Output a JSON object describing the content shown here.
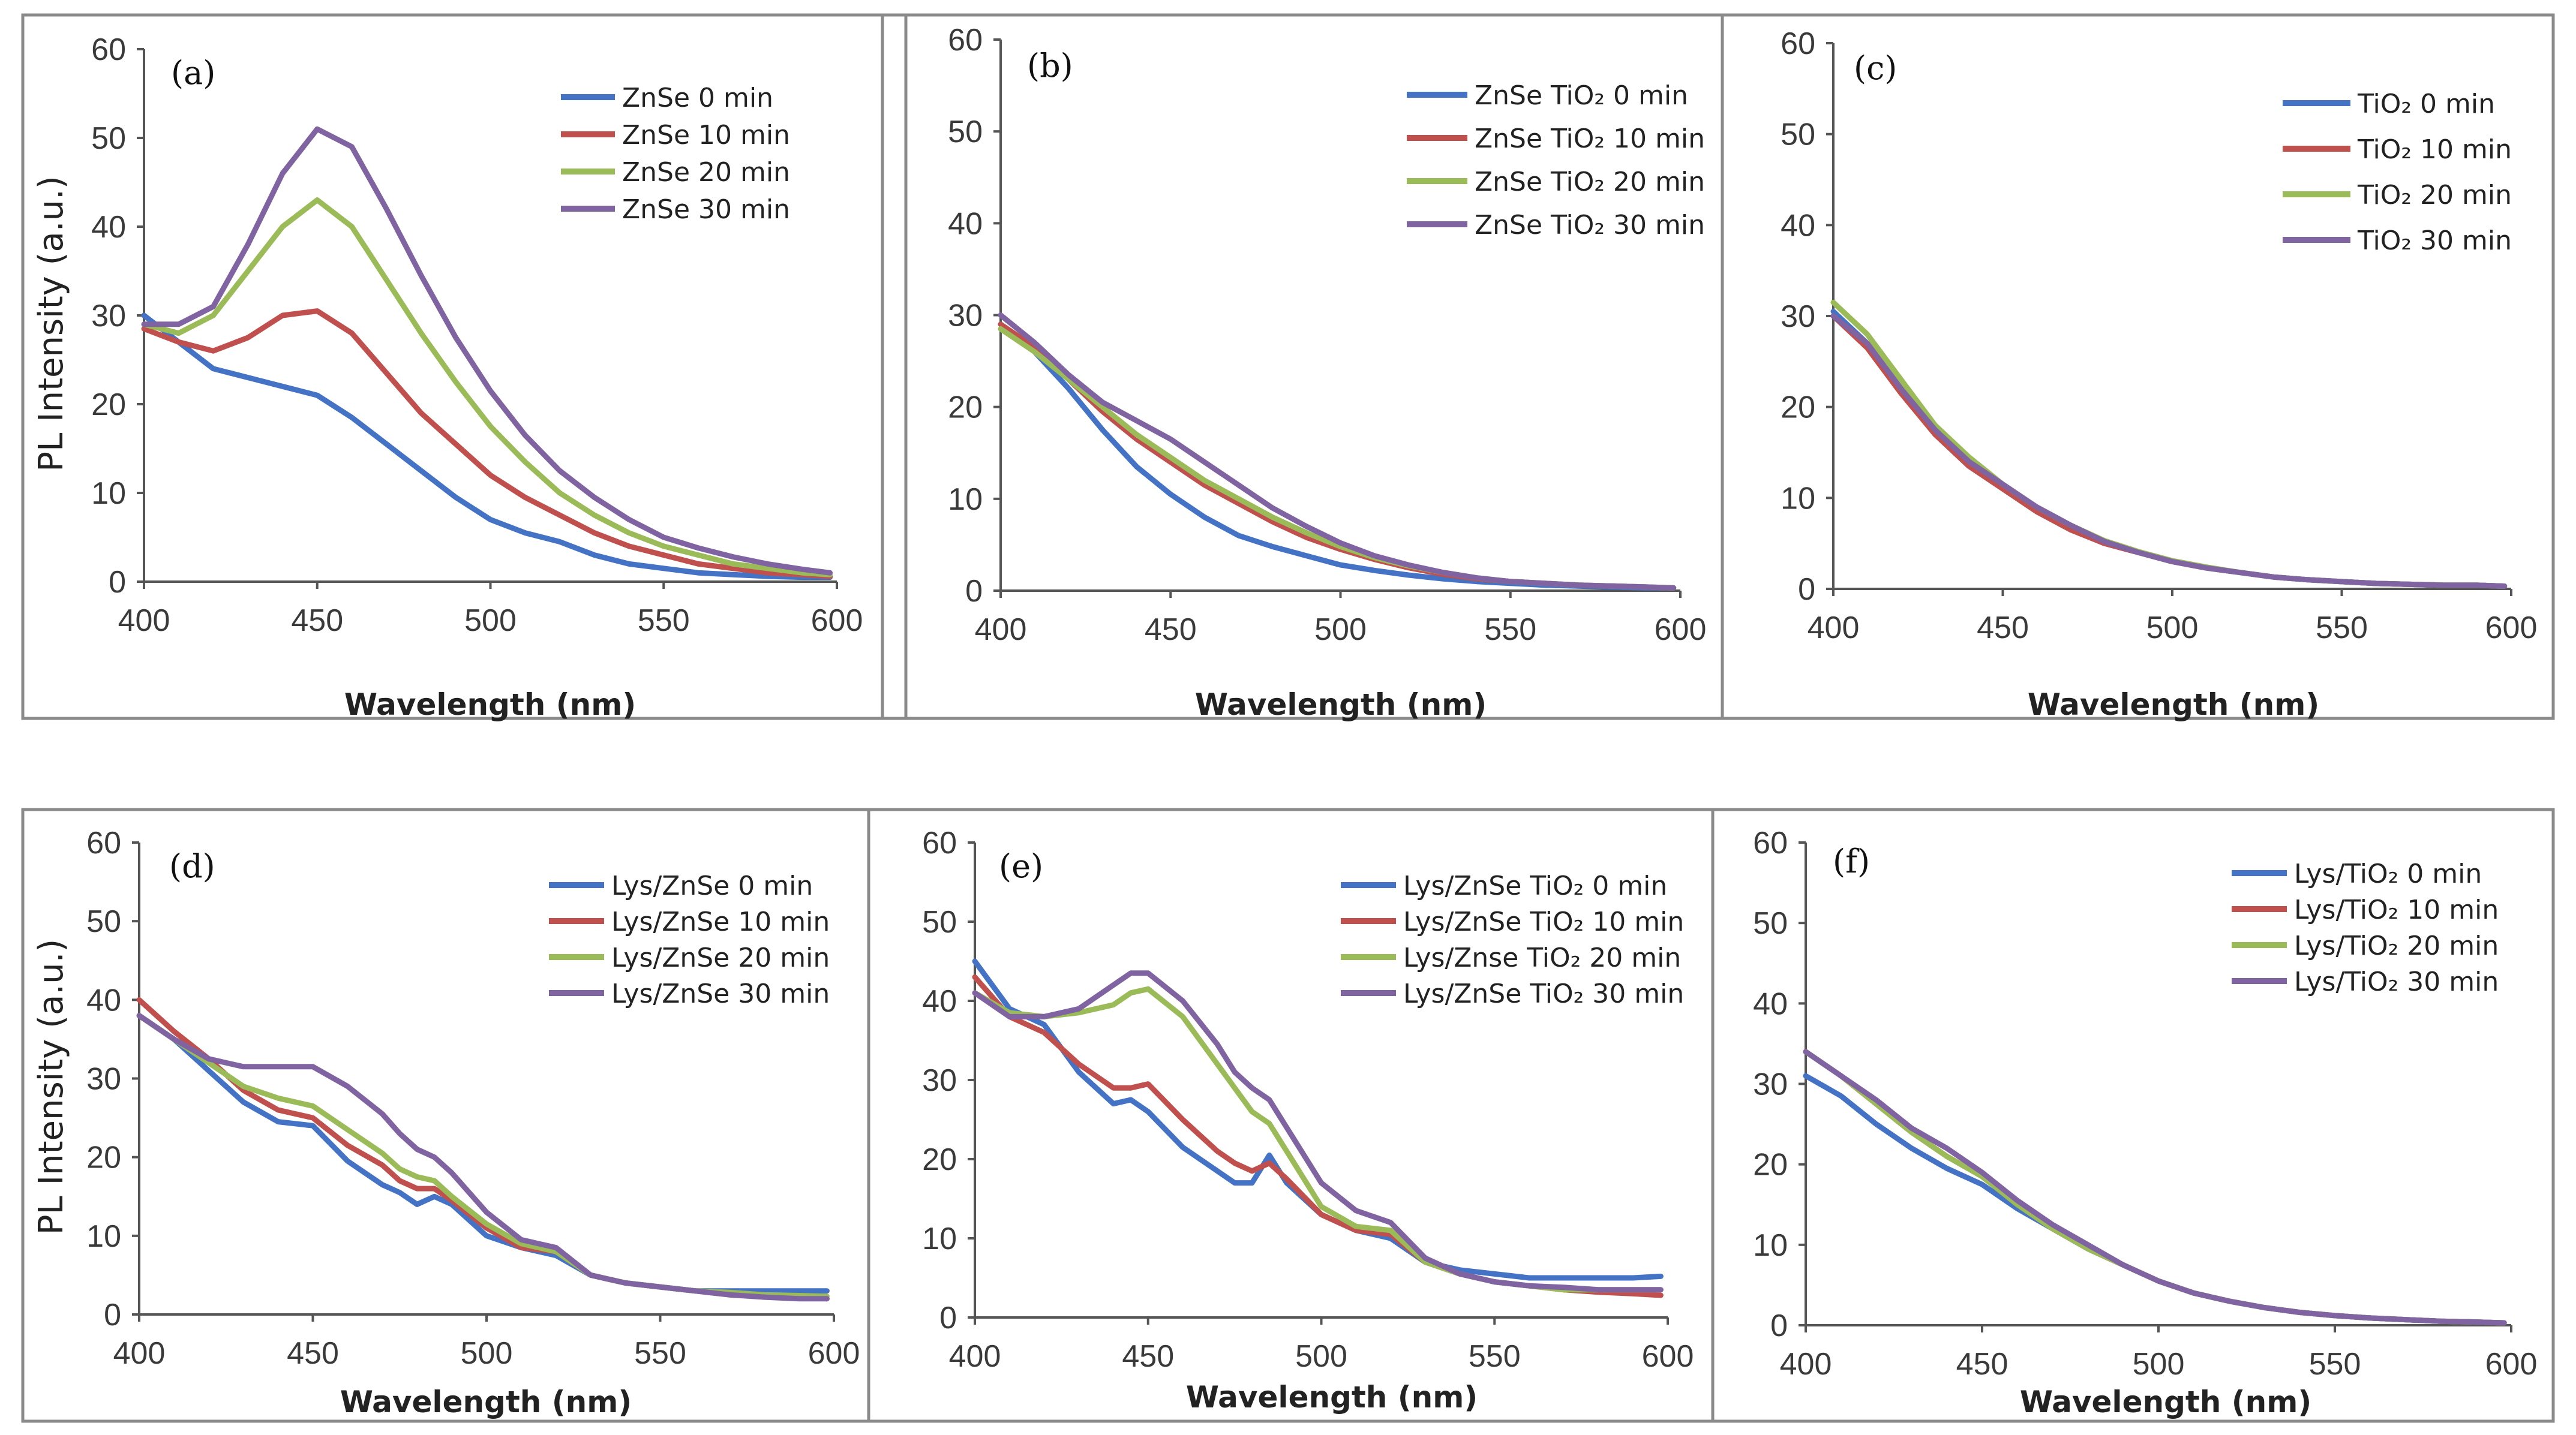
{
  "colors": {
    "s0": "#4472c4",
    "s10": "#c0504d",
    "s20": "#9bbb59",
    "s30": "#8064a2"
  },
  "chart_data": [
    {
      "type": "line",
      "panel_label": "(a)",
      "xlabel": "Wavelength (nm)",
      "ylabel": "PL Intensity (a.u.)",
      "xlim": [
        400,
        600
      ],
      "ylim": [
        0,
        60
      ],
      "xticks": [
        400,
        450,
        500,
        550,
        600
      ],
      "yticks": [
        0,
        10,
        20,
        30,
        40,
        50,
        60
      ],
      "x": [
        400,
        410,
        420,
        430,
        440,
        450,
        460,
        470,
        480,
        490,
        500,
        510,
        520,
        530,
        540,
        550,
        560,
        570,
        580,
        590,
        598
      ],
      "series": [
        {
          "name": "ZnSe  0 min",
          "color": "#4472c4",
          "values": [
            30,
            27,
            24,
            23,
            22,
            21,
            18.5,
            15.5,
            12.5,
            9.5,
            7,
            5.5,
            4.5,
            3,
            2,
            1.5,
            1,
            0.8,
            0.6,
            0.5,
            0.5
          ]
        },
        {
          "name": "ZnSe 10 min",
          "color": "#c0504d",
          "values": [
            28.5,
            27,
            26,
            27.5,
            30,
            30.5,
            28,
            23.5,
            19,
            15.5,
            12,
            9.5,
            7.5,
            5.5,
            4,
            3,
            2,
            1.5,
            1,
            0.8,
            0.6
          ]
        },
        {
          "name": "ZnSe 20 min",
          "color": "#9bbb59",
          "values": [
            29,
            28,
            30,
            35,
            40,
            43,
            40,
            34,
            28,
            22.5,
            17.5,
            13.5,
            10,
            7.5,
            5.5,
            4,
            3,
            2,
            1.5,
            1,
            0.8
          ]
        },
        {
          "name": "ZnSe 30 min",
          "color": "#8064a2",
          "values": [
            29,
            29,
            31,
            38,
            46,
            51,
            49,
            42,
            34.5,
            27.5,
            21.5,
            16.5,
            12.5,
            9.5,
            7,
            5,
            3.8,
            2.8,
            2,
            1.4,
            1
          ]
        }
      ]
    },
    {
      "type": "line",
      "panel_label": "(b)",
      "xlabel": "Wavelength (nm)",
      "ylabel": "",
      "xlim": [
        400,
        600
      ],
      "ylim": [
        0,
        60
      ],
      "xticks": [
        400,
        450,
        500,
        550,
        600
      ],
      "yticks": [
        0,
        10,
        20,
        30,
        40,
        50,
        60
      ],
      "x": [
        400,
        410,
        420,
        430,
        440,
        450,
        460,
        470,
        480,
        490,
        500,
        510,
        520,
        530,
        540,
        550,
        560,
        570,
        580,
        590,
        598
      ],
      "series": [
        {
          "name": "ZnSe TiO₂  0 min",
          "color": "#4472c4",
          "values": [
            29,
            26,
            22,
            17.5,
            13.5,
            10.5,
            8,
            6,
            4.8,
            3.8,
            2.8,
            2.2,
            1.7,
            1.3,
            1,
            0.8,
            0.6,
            0.5,
            0.4,
            0.3,
            0.3
          ]
        },
        {
          "name": "ZnSe TiO₂ 10 min",
          "color": "#c0504d",
          "values": [
            29,
            26.5,
            23,
            19.5,
            16.5,
            14,
            11.5,
            9.5,
            7.5,
            5.8,
            4.5,
            3.4,
            2.5,
            1.8,
            1.3,
            1,
            0.8,
            0.6,
            0.5,
            0.4,
            0.3
          ]
        },
        {
          "name": "ZnSe TiO₂ 20 min",
          "color": "#9bbb59",
          "values": [
            28.5,
            26,
            23,
            20,
            17,
            14.5,
            12,
            10,
            8,
            6.3,
            4.8,
            3.6,
            2.7,
            2,
            1.4,
            1,
            0.8,
            0.6,
            0.5,
            0.4,
            0.3
          ]
        },
        {
          "name": "ZnSe TiO₂ 30 min",
          "color": "#8064a2",
          "values": [
            30,
            27,
            23.5,
            20.5,
            18.5,
            16.5,
            14,
            11.5,
            9,
            7,
            5.2,
            3.8,
            2.8,
            2,
            1.4,
            1,
            0.8,
            0.6,
            0.5,
            0.4,
            0.3
          ]
        }
      ]
    },
    {
      "type": "line",
      "panel_label": "(c)",
      "xlabel": "Wavelength (nm)",
      "ylabel": "",
      "xlim": [
        400,
        600
      ],
      "ylim": [
        0,
        60
      ],
      "xticks": [
        400,
        450,
        500,
        550,
        600
      ],
      "yticks": [
        0,
        10,
        20,
        30,
        40,
        50,
        60
      ],
      "x": [
        400,
        410,
        420,
        430,
        440,
        450,
        460,
        470,
        480,
        490,
        500,
        510,
        520,
        530,
        540,
        550,
        560,
        570,
        580,
        590,
        598
      ],
      "series": [
        {
          "name": "TiO₂  0 min",
          "color": "#4472c4",
          "values": [
            30.5,
            27,
            22,
            17,
            13.5,
            11,
            8.5,
            6.5,
            5,
            4,
            3,
            2.3,
            1.8,
            1.3,
            1,
            0.8,
            0.6,
            0.5,
            0.4,
            0.4,
            0.3
          ]
        },
        {
          "name": "TiO₂ 10 min",
          "color": "#c0504d",
          "values": [
            30,
            26.5,
            21.5,
            17,
            13.5,
            11,
            8.5,
            6.5,
            5,
            4,
            3,
            2.3,
            1.8,
            1.3,
            1,
            0.8,
            0.6,
            0.5,
            0.4,
            0.4,
            0.3
          ]
        },
        {
          "name": "TiO₂ 20 min",
          "color": "#9bbb59",
          "values": [
            31.5,
            28,
            23,
            18,
            14.5,
            11.5,
            9,
            7,
            5.3,
            4.1,
            3.1,
            2.4,
            1.8,
            1.3,
            1,
            0.8,
            0.6,
            0.5,
            0.4,
            0.4,
            0.3
          ]
        },
        {
          "name": "TiO₂ 30 min",
          "color": "#8064a2",
          "values": [
            30,
            27,
            22,
            17.5,
            14,
            11.5,
            9,
            7,
            5.2,
            4,
            3,
            2.3,
            1.8,
            1.3,
            1,
            0.8,
            0.6,
            0.5,
            0.4,
            0.4,
            0.3
          ]
        }
      ]
    },
    {
      "type": "line",
      "panel_label": "(d)",
      "xlabel": "Wavelength (nm)",
      "ylabel": "PL Intensity (a.u.)",
      "xlim": [
        400,
        600
      ],
      "ylim": [
        0,
        60
      ],
      "xticks": [
        400,
        450,
        500,
        550,
        600
      ],
      "yticks": [
        0,
        10,
        20,
        30,
        40,
        50,
        60
      ],
      "x": [
        400,
        410,
        420,
        430,
        440,
        450,
        460,
        470,
        475,
        480,
        485,
        490,
        500,
        510,
        520,
        530,
        540,
        550,
        560,
        570,
        580,
        590,
        598
      ],
      "series": [
        {
          "name": "Lys/ZnSe  0 min",
          "color": "#4472c4",
          "values": [
            38,
            35,
            31,
            27,
            24.5,
            24,
            19.5,
            16.5,
            15.5,
            14,
            15,
            14,
            10,
            8.5,
            7.5,
            5,
            4,
            3.5,
            3,
            3,
            3,
            3,
            3
          ]
        },
        {
          "name": "Lys/ZnSe 10 min",
          "color": "#c0504d",
          "values": [
            40,
            36,
            32.5,
            28.5,
            26,
            25,
            21.5,
            19,
            17,
            16,
            16,
            14.5,
            11,
            8.5,
            8,
            5,
            4,
            3.5,
            3,
            2.5,
            2.3,
            2.2,
            2
          ]
        },
        {
          "name": "Lys/ZnSe 20 min",
          "color": "#9bbb59",
          "values": [
            38,
            35,
            32,
            29,
            27.5,
            26.5,
            23.5,
            20.5,
            18.5,
            17.5,
            17,
            15,
            11.5,
            9,
            8,
            5,
            4,
            3.5,
            3,
            2.8,
            2.5,
            2.4,
            2.3
          ]
        },
        {
          "name": "Lys/ZnSe 30 min",
          "color": "#8064a2",
          "values": [
            38,
            35,
            32.5,
            31.5,
            31.5,
            31.5,
            29,
            25.5,
            23,
            21,
            20,
            18,
            13,
            9.5,
            8.5,
            5,
            4,
            3.5,
            3,
            2.5,
            2.2,
            2,
            2
          ]
        }
      ]
    },
    {
      "type": "line",
      "panel_label": "(e)",
      "xlabel": "Wavelength (nm)",
      "ylabel": "",
      "xlim": [
        400,
        600
      ],
      "ylim": [
        0,
        60
      ],
      "xticks": [
        400,
        450,
        500,
        550,
        600
      ],
      "yticks": [
        0,
        10,
        20,
        30,
        40,
        50,
        60
      ],
      "x": [
        400,
        410,
        420,
        430,
        440,
        445,
        450,
        460,
        470,
        475,
        480,
        485,
        490,
        500,
        510,
        520,
        530,
        540,
        550,
        560,
        570,
        580,
        590,
        598
      ],
      "series": [
        {
          "name": "Lys/ZnSe TiO₂    0 min",
          "color": "#4472c4",
          "values": [
            45,
            39,
            37,
            31,
            27,
            27.5,
            26,
            21.5,
            18.5,
            17,
            17,
            20.5,
            17,
            13,
            11,
            10,
            7,
            6,
            5.5,
            5,
            5,
            5,
            5,
            5.2
          ]
        },
        {
          "name": "Lys/ZnSe TiO₂  10 min",
          "color": "#c0504d",
          "values": [
            43,
            38,
            36,
            32,
            29,
            29,
            29.5,
            25,
            21,
            19.5,
            18.5,
            19.5,
            17.5,
            13,
            11,
            10.5,
            7,
            5.5,
            4.5,
            4,
            3.5,
            3.2,
            3,
            2.8
          ]
        },
        {
          "name": "Lys/Znse TiO₂  20 min",
          "color": "#9bbb59",
          "values": [
            41,
            38.5,
            38,
            38.5,
            39.5,
            41,
            41.5,
            38,
            32,
            29,
            26,
            24.5,
            21,
            14,
            11.5,
            11,
            7,
            5.5,
            4.5,
            4,
            3.5,
            3.5,
            3.5,
            3.5
          ]
        },
        {
          "name": "Lys/ZnSe TiO₂  30 min",
          "color": "#8064a2",
          "values": [
            41,
            38,
            38,
            39,
            42,
            43.5,
            43.5,
            40,
            34.5,
            31,
            29,
            27.5,
            24,
            17,
            13.5,
            12,
            7.5,
            5.5,
            4.5,
            4,
            3.8,
            3.5,
            3.5,
            3.5
          ]
        }
      ]
    },
    {
      "type": "line",
      "panel_label": "(f)",
      "xlabel": "Wavelength (nm)",
      "ylabel": "",
      "xlim": [
        400,
        600
      ],
      "ylim": [
        0,
        60
      ],
      "xticks": [
        400,
        450,
        500,
        550,
        600
      ],
      "yticks": [
        0,
        10,
        20,
        30,
        40,
        50,
        60
      ],
      "x": [
        400,
        410,
        420,
        430,
        440,
        450,
        460,
        470,
        480,
        490,
        500,
        510,
        520,
        530,
        540,
        550,
        560,
        570,
        580,
        590,
        598
      ],
      "series": [
        {
          "name": "Lys/TiO₂  0 min",
          "color": "#4472c4",
          "values": [
            31,
            28.5,
            25,
            22,
            19.5,
            17.5,
            14.5,
            12,
            9.5,
            7.5,
            5.5,
            4,
            3,
            2.2,
            1.6,
            1.2,
            0.9,
            0.7,
            0.5,
            0.4,
            0.3
          ]
        },
        {
          "name": "Lys/TiO₂ 10 min",
          "color": "#c0504d",
          "values": [
            34,
            31,
            27.5,
            24,
            21,
            18.5,
            15,
            12,
            9.5,
            7.5,
            5.5,
            4,
            3,
            2.2,
            1.6,
            1.2,
            0.9,
            0.7,
            0.5,
            0.4,
            0.3
          ]
        },
        {
          "name": "Lys/TiO₂ 20 min",
          "color": "#9bbb59",
          "values": [
            34,
            31,
            27.5,
            24,
            21,
            18.5,
            15,
            12,
            9.5,
            7.5,
            5.5,
            4,
            3,
            2.2,
            1.6,
            1.2,
            0.9,
            0.7,
            0.5,
            0.4,
            0.3
          ]
        },
        {
          "name": "Lys/TiO₂ 30 min",
          "color": "#8064a2",
          "values": [
            34,
            31,
            28,
            24.5,
            22,
            19,
            15.5,
            12.5,
            10,
            7.5,
            5.5,
            4,
            3,
            2.2,
            1.6,
            1.2,
            0.9,
            0.7,
            0.5,
            0.4,
            0.3
          ]
        }
      ]
    }
  ]
}
